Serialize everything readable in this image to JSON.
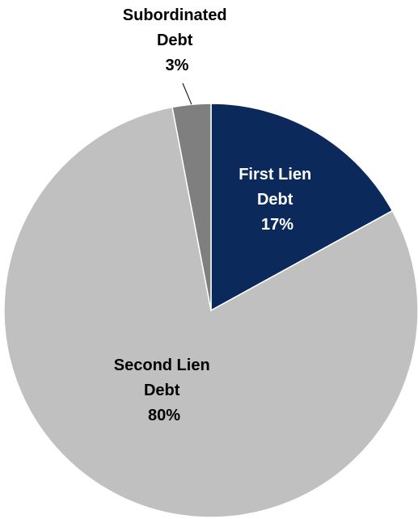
{
  "chart_data": {
    "type": "pie",
    "slices": [
      {
        "name": "First Lien Debt",
        "label_lines": [
          "First Lien",
          "Debt"
        ],
        "value": 17,
        "value_label": "17%",
        "color": "#0b2a5b",
        "label_color": "#ffffff"
      },
      {
        "name": "Second Lien Debt",
        "label_lines": [
          "Second Lien",
          "Debt"
        ],
        "value": 80,
        "value_label": "80%",
        "color": "#c0c0c0",
        "label_color": "#000000"
      },
      {
        "name": "Subordinated Debt",
        "label_lines": [
          "Subordinated",
          "Debt"
        ],
        "value": 3,
        "value_label": "3%",
        "color": "#7f7f7f",
        "label_color": "#000000"
      }
    ],
    "start": "12 o'clock",
    "direction": "clockwise",
    "legend": "none"
  }
}
